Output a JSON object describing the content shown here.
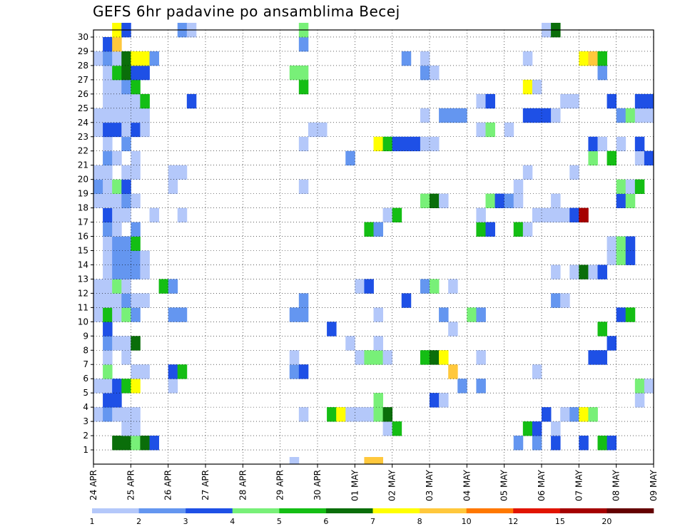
{
  "chart_data": {
    "type": "heatmap",
    "title": "GEFS 6hr padavine po ansamblima Becej",
    "x_tick_labels": [
      "24 APR",
      "25 APR",
      "26 APR",
      "27 APR",
      "28 APR",
      "29 APR",
      "30 APR",
      "01 MAY",
      "02 MAY",
      "03 MAY",
      "04 MAY",
      "05 MAY",
      "06 MAY",
      "07 MAY",
      "08 MAY",
      "09 MAY"
    ],
    "x_steps_per_day": 4,
    "x_step_count": 60,
    "ylim": [
      0,
      30
    ],
    "y_tick_labels": [
      "1",
      "2",
      "3",
      "4",
      "5",
      "6",
      "7",
      "8",
      "9",
      "10",
      "11",
      "12",
      "13",
      "14",
      "15",
      "16",
      "17",
      "18",
      "19",
      "20",
      "21",
      "22",
      "23",
      "24",
      "25",
      "26",
      "27",
      "28",
      "29",
      "30"
    ],
    "grid": "dotted",
    "legend": {
      "placement": "bottom",
      "labels": [
        "1",
        "2",
        "3",
        "4",
        "5",
        "6",
        "7",
        "8",
        "10",
        "12",
        "15",
        "20"
      ],
      "colors": [
        "#b4c8fa",
        "#6496f0",
        "#1e50e6",
        "#78f078",
        "#14be14",
        "#0a6e0a",
        "#ffff00",
        "#ffc83c",
        "#ff7800",
        "#e11400",
        "#a50000",
        "#640000"
      ]
    },
    "palette": [
      "#ffffff",
      "#b4c8fa",
      "#6496f0",
      "#1e50e6",
      "#78f078",
      "#14be14",
      "#0a6e0a",
      "#ffff00",
      "#ffc83c",
      "#ff7800",
      "#e11400",
      "#a50000",
      "#640000"
    ],
    "cells": [
      [
        1,
        3,
        6
      ],
      [
        1,
        4,
        6
      ],
      [
        1,
        5,
        4
      ],
      [
        1,
        6,
        6
      ],
      [
        1,
        7,
        3
      ],
      [
        1,
        46,
        2
      ],
      [
        1,
        48,
        2
      ],
      [
        1,
        50,
        3
      ],
      [
        1,
        53,
        3
      ],
      [
        1,
        55,
        5
      ],
      [
        1,
        56,
        3
      ],
      [
        2,
        4,
        1
      ],
      [
        2,
        5,
        1
      ],
      [
        2,
        32,
        1
      ],
      [
        2,
        33,
        5
      ],
      [
        2,
        47,
        5
      ],
      [
        2,
        48,
        3
      ],
      [
        2,
        50,
        1
      ],
      [
        3,
        1,
        1
      ],
      [
        3,
        2,
        2
      ],
      [
        3,
        3,
        1
      ],
      [
        3,
        4,
        1
      ],
      [
        3,
        5,
        1
      ],
      [
        3,
        23,
        1
      ],
      [
        3,
        26,
        5
      ],
      [
        3,
        27,
        7
      ],
      [
        3,
        28,
        1
      ],
      [
        3,
        29,
        1
      ],
      [
        3,
        30,
        1
      ],
      [
        3,
        31,
        4
      ],
      [
        3,
        32,
        6
      ],
      [
        3,
        49,
        3
      ],
      [
        3,
        51,
        1
      ],
      [
        3,
        52,
        2
      ],
      [
        3,
        53,
        7
      ],
      [
        3,
        54,
        4
      ],
      [
        4,
        2,
        3
      ],
      [
        4,
        3,
        3
      ],
      [
        4,
        31,
        4
      ],
      [
        4,
        37,
        3
      ],
      [
        4,
        38,
        1
      ],
      [
        4,
        59,
        1
      ],
      [
        5,
        1,
        1
      ],
      [
        5,
        2,
        1
      ],
      [
        5,
        3,
        3
      ],
      [
        5,
        4,
        5
      ],
      [
        5,
        5,
        7
      ],
      [
        5,
        9,
        1
      ],
      [
        5,
        40,
        2
      ],
      [
        5,
        42,
        2
      ],
      [
        5,
        59,
        4
      ],
      [
        5,
        60,
        1
      ],
      [
        6,
        2,
        4
      ],
      [
        6,
        5,
        1
      ],
      [
        6,
        6,
        1
      ],
      [
        6,
        9,
        3
      ],
      [
        6,
        10,
        5
      ],
      [
        6,
        22,
        2
      ],
      [
        6,
        23,
        3
      ],
      [
        6,
        39,
        8
      ],
      [
        6,
        48,
        1
      ],
      [
        7,
        2,
        1
      ],
      [
        7,
        4,
        1
      ],
      [
        7,
        22,
        1
      ],
      [
        7,
        29,
        1
      ],
      [
        7,
        30,
        4
      ],
      [
        7,
        31,
        4
      ],
      [
        7,
        32,
        1
      ],
      [
        7,
        36,
        5
      ],
      [
        7,
        37,
        6
      ],
      [
        7,
        38,
        7
      ],
      [
        7,
        42,
        1
      ],
      [
        7,
        54,
        3
      ],
      [
        7,
        55,
        3
      ],
      [
        8,
        2,
        2
      ],
      [
        8,
        3,
        1
      ],
      [
        8,
        4,
        1
      ],
      [
        8,
        5,
        6
      ],
      [
        8,
        28,
        1
      ],
      [
        8,
        31,
        1
      ],
      [
        8,
        56,
        3
      ],
      [
        9,
        2,
        3
      ],
      [
        9,
        26,
        3
      ],
      [
        9,
        39,
        1
      ],
      [
        9,
        55,
        5
      ],
      [
        10,
        1,
        1
      ],
      [
        10,
        2,
        5
      ],
      [
        10,
        3,
        1
      ],
      [
        10,
        4,
        4
      ],
      [
        10,
        5,
        2
      ],
      [
        10,
        9,
        2
      ],
      [
        10,
        10,
        2
      ],
      [
        10,
        22,
        2
      ],
      [
        10,
        23,
        2
      ],
      [
        10,
        31,
        1
      ],
      [
        10,
        38,
        2
      ],
      [
        10,
        41,
        4
      ],
      [
        10,
        42,
        2
      ],
      [
        10,
        57,
        3
      ],
      [
        10,
        58,
        5
      ],
      [
        11,
        1,
        1
      ],
      [
        11,
        2,
        1
      ],
      [
        11,
        3,
        1
      ],
      [
        11,
        4,
        2
      ],
      [
        11,
        5,
        1
      ],
      [
        11,
        6,
        1
      ],
      [
        11,
        23,
        2
      ],
      [
        11,
        34,
        3
      ],
      [
        11,
        50,
        2
      ],
      [
        11,
        51,
        1
      ],
      [
        12,
        1,
        1
      ],
      [
        12,
        2,
        1
      ],
      [
        12,
        3,
        4
      ],
      [
        12,
        4,
        1
      ],
      [
        12,
        8,
        5
      ],
      [
        12,
        9,
        2
      ],
      [
        12,
        29,
        1
      ],
      [
        12,
        30,
        3
      ],
      [
        12,
        36,
        2
      ],
      [
        12,
        37,
        4
      ],
      [
        12,
        39,
        1
      ],
      [
        13,
        2,
        1
      ],
      [
        13,
        3,
        2
      ],
      [
        13,
        4,
        2
      ],
      [
        13,
        5,
        2
      ],
      [
        13,
        6,
        1
      ],
      [
        13,
        50,
        1
      ],
      [
        13,
        52,
        1
      ],
      [
        13,
        53,
        6
      ],
      [
        13,
        54,
        1
      ],
      [
        13,
        55,
        3
      ],
      [
        14,
        2,
        1
      ],
      [
        14,
        3,
        2
      ],
      [
        14,
        4,
        2
      ],
      [
        14,
        5,
        2
      ],
      [
        14,
        6,
        1
      ],
      [
        14,
        56,
        1
      ],
      [
        14,
        57,
        4
      ],
      [
        14,
        58,
        3
      ],
      [
        15,
        2,
        1
      ],
      [
        15,
        3,
        2
      ],
      [
        15,
        4,
        2
      ],
      [
        15,
        5,
        5
      ],
      [
        15,
        56,
        1
      ],
      [
        15,
        57,
        4
      ],
      [
        15,
        58,
        3
      ],
      [
        16,
        2,
        2
      ],
      [
        16,
        3,
        1
      ],
      [
        16,
        5,
        2
      ],
      [
        16,
        30,
        5
      ],
      [
        16,
        31,
        2
      ],
      [
        16,
        42,
        5
      ],
      [
        16,
        43,
        3
      ],
      [
        16,
        46,
        5
      ],
      [
        16,
        47,
        1
      ],
      [
        17,
        2,
        3
      ],
      [
        17,
        3,
        1
      ],
      [
        17,
        4,
        1
      ],
      [
        17,
        7,
        1
      ],
      [
        17,
        10,
        1
      ],
      [
        17,
        32,
        1
      ],
      [
        17,
        33,
        5
      ],
      [
        17,
        42,
        1
      ],
      [
        17,
        48,
        1
      ],
      [
        17,
        49,
        1
      ],
      [
        17,
        50,
        1
      ],
      [
        17,
        51,
        1
      ],
      [
        17,
        52,
        3
      ],
      [
        17,
        53,
        11
      ],
      [
        18,
        1,
        1
      ],
      [
        18,
        2,
        1
      ],
      [
        18,
        3,
        1
      ],
      [
        18,
        4,
        2
      ],
      [
        18,
        5,
        1
      ],
      [
        18,
        36,
        4
      ],
      [
        18,
        37,
        6
      ],
      [
        18,
        38,
        1
      ],
      [
        18,
        43,
        4
      ],
      [
        18,
        44,
        3
      ],
      [
        18,
        45,
        2
      ],
      [
        18,
        46,
        1
      ],
      [
        18,
        50,
        1
      ],
      [
        18,
        57,
        3
      ],
      [
        18,
        58,
        4
      ],
      [
        19,
        1,
        2
      ],
      [
        19,
        2,
        1
      ],
      [
        19,
        3,
        4
      ],
      [
        19,
        4,
        3
      ],
      [
        19,
        9,
        1
      ],
      [
        19,
        23,
        1
      ],
      [
        19,
        46,
        1
      ],
      [
        19,
        57,
        4
      ],
      [
        19,
        58,
        1
      ],
      [
        19,
        59,
        5
      ],
      [
        20,
        1,
        1
      ],
      [
        20,
        2,
        1
      ],
      [
        20,
        4,
        1
      ],
      [
        20,
        5,
        1
      ],
      [
        20,
        9,
        1
      ],
      [
        20,
        10,
        1
      ],
      [
        20,
        47,
        1
      ],
      [
        20,
        52,
        1
      ],
      [
        21,
        2,
        2
      ],
      [
        21,
        3,
        1
      ],
      [
        21,
        5,
        1
      ],
      [
        21,
        28,
        2
      ],
      [
        21,
        54,
        4
      ],
      [
        21,
        56,
        5
      ],
      [
        21,
        59,
        1
      ],
      [
        21,
        60,
        3
      ],
      [
        22,
        2,
        1
      ],
      [
        22,
        4,
        2
      ],
      [
        22,
        23,
        1
      ],
      [
        22,
        31,
        7
      ],
      [
        22,
        32,
        5
      ],
      [
        22,
        33,
        3
      ],
      [
        22,
        34,
        3
      ],
      [
        22,
        35,
        3
      ],
      [
        22,
        36,
        1
      ],
      [
        22,
        37,
        1
      ],
      [
        22,
        54,
        3
      ],
      [
        22,
        55,
        1
      ],
      [
        22,
        57,
        1
      ],
      [
        22,
        59,
        3
      ],
      [
        23,
        1,
        1
      ],
      [
        23,
        2,
        3
      ],
      [
        23,
        3,
        3
      ],
      [
        23,
        4,
        1
      ],
      [
        23,
        5,
        3
      ],
      [
        23,
        6,
        1
      ],
      [
        23,
        24,
        1
      ],
      [
        23,
        25,
        1
      ],
      [
        23,
        42,
        1
      ],
      [
        23,
        43,
        4
      ],
      [
        23,
        45,
        1
      ],
      [
        24,
        1,
        1
      ],
      [
        24,
        2,
        1
      ],
      [
        24,
        3,
        1
      ],
      [
        24,
        4,
        1
      ],
      [
        24,
        5,
        1
      ],
      [
        24,
        6,
        1
      ],
      [
        24,
        36,
        1
      ],
      [
        24,
        38,
        2
      ],
      [
        24,
        39,
        2
      ],
      [
        24,
        40,
        2
      ],
      [
        24,
        47,
        3
      ],
      [
        24,
        48,
        3
      ],
      [
        24,
        49,
        3
      ],
      [
        24,
        50,
        1
      ],
      [
        24,
        57,
        2
      ],
      [
        24,
        58,
        4
      ],
      [
        24,
        59,
        1
      ],
      [
        24,
        60,
        1
      ],
      [
        25,
        2,
        1
      ],
      [
        25,
        3,
        1
      ],
      [
        25,
        4,
        1
      ],
      [
        25,
        5,
        1
      ],
      [
        25,
        6,
        5
      ],
      [
        25,
        11,
        3
      ],
      [
        25,
        42,
        1
      ],
      [
        25,
        43,
        3
      ],
      [
        25,
        51,
        1
      ],
      [
        25,
        52,
        1
      ],
      [
        25,
        56,
        3
      ],
      [
        25,
        59,
        3
      ],
      [
        25,
        60,
        3
      ],
      [
        26,
        2,
        1
      ],
      [
        26,
        3,
        1
      ],
      [
        26,
        4,
        2
      ],
      [
        26,
        5,
        5
      ],
      [
        26,
        23,
        5
      ],
      [
        26,
        47,
        7
      ],
      [
        26,
        48,
        1
      ],
      [
        27,
        2,
        1
      ],
      [
        27,
        3,
        5
      ],
      [
        27,
        4,
        6
      ],
      [
        27,
        5,
        3
      ],
      [
        27,
        6,
        3
      ],
      [
        27,
        22,
        4
      ],
      [
        27,
        23,
        4
      ],
      [
        27,
        36,
        2
      ],
      [
        27,
        37,
        1
      ],
      [
        27,
        55,
        2
      ],
      [
        28,
        1,
        1
      ],
      [
        28,
        2,
        2
      ],
      [
        28,
        3,
        1
      ],
      [
        28,
        4,
        6
      ],
      [
        28,
        5,
        7
      ],
      [
        28,
        6,
        7
      ],
      [
        28,
        7,
        2
      ],
      [
        28,
        34,
        2
      ],
      [
        28,
        36,
        1
      ],
      [
        28,
        47,
        1
      ],
      [
        28,
        53,
        7
      ],
      [
        28,
        54,
        8
      ],
      [
        28,
        55,
        5
      ],
      [
        29,
        2,
        3
      ],
      [
        29,
        3,
        8
      ],
      [
        29,
        23,
        2
      ],
      [
        30,
        3,
        7
      ],
      [
        30,
        4,
        3
      ],
      [
        30,
        10,
        2
      ],
      [
        30,
        11,
        1
      ],
      [
        30,
        23,
        4
      ],
      [
        30,
        49,
        1
      ],
      [
        30,
        50,
        6
      ],
      [
        0,
        30,
        8
      ],
      [
        0,
        31,
        8
      ],
      [
        0,
        22,
        1
      ]
    ]
  }
}
